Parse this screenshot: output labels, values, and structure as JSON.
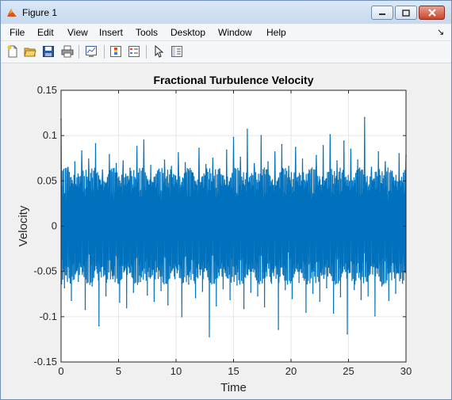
{
  "window": {
    "title": "Figure 1"
  },
  "menu": {
    "items": [
      "File",
      "Edit",
      "View",
      "Insert",
      "Tools",
      "Desktop",
      "Window",
      "Help"
    ]
  },
  "toolbar": {
    "icons": [
      "new-figure-icon",
      "open-file-icon",
      "save-icon",
      "print-icon",
      "link-plot-icon",
      "insert-colorbar-icon",
      "insert-legend-icon",
      "edit-plot-arrow-icon",
      "property-inspector-icon"
    ]
  },
  "colors": {
    "line": "#0072bd",
    "axes_bg": "#ffffff",
    "figure_bg": "#f0f0f0",
    "grid": "#e6e6e6"
  },
  "chart_data": {
    "type": "line",
    "title": "Fractional Turbulence Velocity",
    "xlabel": "Time",
    "ylabel": "Velocity",
    "xlim": [
      0,
      30
    ],
    "ylim": [
      -0.15,
      0.15
    ],
    "xticks": [
      0,
      5,
      10,
      15,
      20,
      25,
      30
    ],
    "xtick_labels": [
      "0",
      "5",
      "10",
      "15",
      "20",
      "25",
      "30"
    ],
    "yticks": [
      -0.15,
      -0.1,
      -0.05,
      0,
      0.05,
      0.1,
      0.15
    ],
    "ytick_labels": [
      "-0.15",
      "-0.1",
      "-0.05",
      "0",
      "0.05",
      "0.1",
      "0.15"
    ],
    "grid": true,
    "series": [
      {
        "x": [
          0,
          0.3,
          0.6,
          0.9,
          1.2,
          1.5,
          1.8,
          2.1,
          2.4,
          2.7,
          3.0,
          3.3,
          3.6,
          3.9,
          4.2,
          4.5,
          4.8,
          5.1,
          5.4,
          5.7,
          6.0,
          6.3,
          6.6,
          6.9,
          7.2,
          7.5,
          7.8,
          8.1,
          8.4,
          8.7,
          9.0,
          9.3,
          9.6,
          9.9,
          10.2,
          10.5,
          10.8,
          11.1,
          11.4,
          11.7,
          12.0,
          12.3,
          12.6,
          12.9,
          13.2,
          13.5,
          13.8,
          14.1,
          14.4,
          14.7,
          15.0,
          15.3,
          15.6,
          15.9,
          16.2,
          16.5,
          16.8,
          17.1,
          17.4,
          17.7,
          18.0,
          18.3,
          18.6,
          18.9,
          19.2,
          19.5,
          19.8,
          20.1,
          20.4,
          20.7,
          21.0,
          21.3,
          21.6,
          21.9,
          22.2,
          22.5,
          22.8,
          23.1,
          23.4,
          23.7,
          24.0,
          24.3,
          24.6,
          24.9,
          25.2,
          25.5,
          25.8,
          26.1,
          26.4,
          26.7,
          27.0,
          27.3,
          27.6,
          27.9,
          28.2,
          28.5,
          28.8,
          29.1,
          29.4,
          29.7,
          30.0
        ],
        "y": [
          0.118,
          -0.068,
          0.065,
          -0.082,
          0.071,
          -0.061,
          0.083,
          -0.092,
          0.074,
          -0.066,
          0.091,
          -0.11,
          0.062,
          -0.077,
          0.079,
          -0.058,
          0.069,
          -0.084,
          0.072,
          -0.09,
          0.064,
          -0.073,
          0.088,
          -0.061,
          0.095,
          -0.076,
          0.067,
          -0.083,
          0.06,
          -0.071,
          0.073,
          -0.087,
          0.066,
          -0.058,
          0.081,
          -0.1,
          0.07,
          -0.064,
          0.059,
          -0.079,
          0.086,
          -0.072,
          0.068,
          -0.122,
          0.075,
          -0.088,
          0.063,
          -0.069,
          0.084,
          -0.081,
          0.098,
          -0.065,
          0.076,
          -0.091,
          0.107,
          -0.073,
          0.069,
          -0.077,
          0.1,
          -0.089,
          0.071,
          -0.063,
          0.082,
          -0.114,
          0.09,
          -0.07,
          0.066,
          -0.08,
          0.087,
          -0.062,
          0.074,
          -0.095,
          0.061,
          -0.074,
          0.078,
          -0.083,
          0.089,
          -0.068,
          0.101,
          -0.096,
          0.072,
          -0.078,
          0.094,
          -0.119,
          0.085,
          -0.07,
          0.073,
          -0.081,
          0.12,
          -0.077,
          0.065,
          -0.099,
          0.082,
          -0.066,
          0.071,
          -0.082,
          0.06,
          -0.074,
          0.08,
          -0.063,
          0.078
        ]
      }
    ]
  }
}
